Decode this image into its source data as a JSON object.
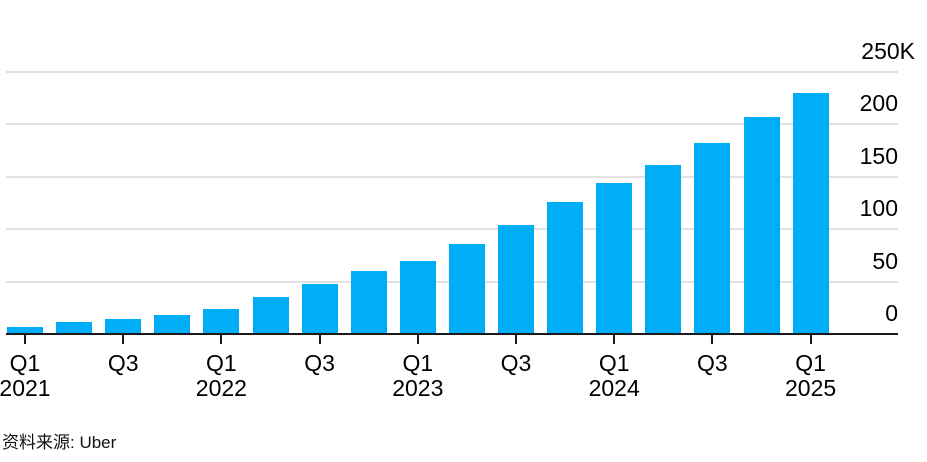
{
  "chart_data": {
    "type": "bar",
    "title": "",
    "categories": [
      "Q1 2021",
      "Q2 2021",
      "Q3 2021",
      "Q4 2021",
      "Q1 2022",
      "Q2 2022",
      "Q3 2022",
      "Q4 2022",
      "Q1 2023",
      "Q2 2023",
      "Q3 2023",
      "Q4 2023",
      "Q1 2024",
      "Q2 2024",
      "Q3 2024",
      "Q4 2024",
      "Q1 2025"
    ],
    "values": [
      7,
      11,
      14,
      18,
      24,
      35,
      48,
      60,
      70,
      86,
      104,
      126,
      144,
      161,
      182,
      207,
      230
    ],
    "unit": "K",
    "ylim": [
      0,
      250
    ],
    "y_ticks": [
      {
        "label": "250K",
        "value": 250
      },
      {
        "label": "200",
        "value": 200
      },
      {
        "label": "150",
        "value": 150
      },
      {
        "label": "100",
        "value": 100
      },
      {
        "label": "50",
        "value": 50
      },
      {
        "label": "0",
        "value": 0
      }
    ],
    "x_ticks": [
      {
        "index": 0,
        "quarter": "Q1",
        "year": "2021"
      },
      {
        "index": 2,
        "quarter": "Q3",
        "year": ""
      },
      {
        "index": 4,
        "quarter": "Q1",
        "year": "2022"
      },
      {
        "index": 6,
        "quarter": "Q3",
        "year": ""
      },
      {
        "index": 8,
        "quarter": "Q1",
        "year": "2023"
      },
      {
        "index": 10,
        "quarter": "Q3",
        "year": ""
      },
      {
        "index": 12,
        "quarter": "Q1",
        "year": "2024"
      },
      {
        "index": 14,
        "quarter": "Q3",
        "year": ""
      },
      {
        "index": 16,
        "quarter": "Q1",
        "year": "2025"
      }
    ],
    "grid": "horizontal",
    "legend": "none",
    "bar_color": "#00adf7",
    "axis_color": "#1a1a1a",
    "gridline_color": "#e2e2e2",
    "source": "资料来源: Uber"
  }
}
